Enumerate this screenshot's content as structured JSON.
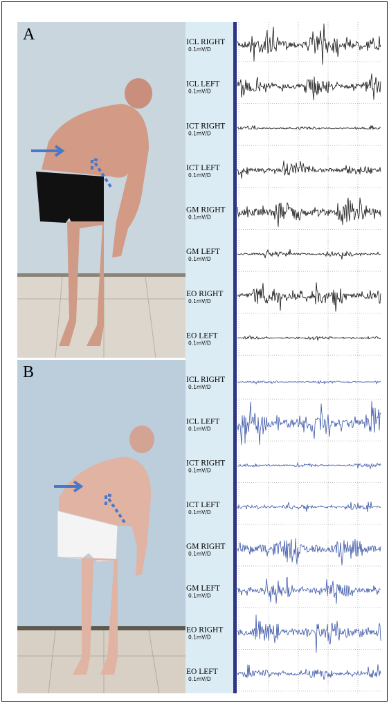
{
  "panels": [
    {
      "label": "A",
      "channels": [
        {
          "name": "ICL RIGHT",
          "scale": "0.1mV/D"
        },
        {
          "name": "ICL LEFT",
          "scale": "0.1mV/D"
        },
        {
          "name": "ICT RIGHT",
          "scale": "0.1mV/D"
        },
        {
          "name": "ICT LEFT",
          "scale": "0.1mV/D"
        },
        {
          "name": "GM RIGHT",
          "scale": "0.1mV/D"
        },
        {
          "name": "GM LEFT",
          "scale": "0.1mV/D"
        },
        {
          "name": "EO RIGHT",
          "scale": "0.1mV/D"
        },
        {
          "name": "EO LEFT",
          "scale": "0.1mV/D"
        }
      ]
    },
    {
      "label": "B",
      "channels": [
        {
          "name": "ICL RIGHT",
          "scale": "0.1mV/D"
        },
        {
          "name": "ICL LEFT",
          "scale": "0.1mV/D"
        },
        {
          "name": "ICT RIGHT",
          "scale": "0.1mV/D"
        },
        {
          "name": "ICT LEFT",
          "scale": "0.1mV/D"
        },
        {
          "name": "GM RIGHT",
          "scale": "0.1mV/D"
        },
        {
          "name": "GM LEFT",
          "scale": "0.1mV/D"
        },
        {
          "name": "EO RIGHT",
          "scale": "0.1mV/D"
        },
        {
          "name": "EO LEFT",
          "scale": "0.1mV/D"
        }
      ]
    }
  ]
}
